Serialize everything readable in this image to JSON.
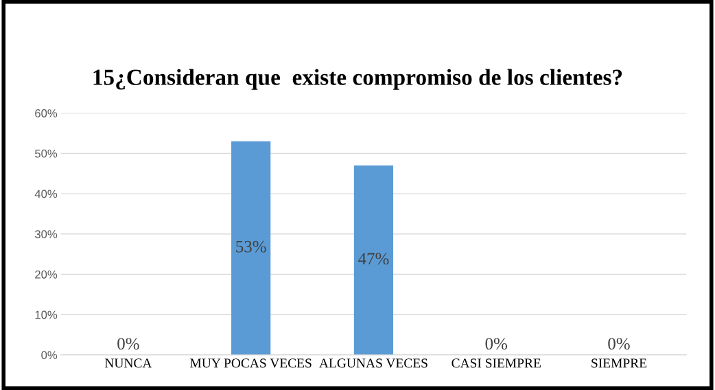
{
  "chart_data": {
    "type": "bar",
    "title": "15¿Consideran que  existe compromiso de los clientes?",
    "categories": [
      "NUNCA",
      "MUY POCAS VECES",
      "ALGUNAS VECES",
      "CASI SIEMPRE",
      "SIEMPRE"
    ],
    "values": [
      0,
      53,
      47,
      0,
      0
    ],
    "value_labels": [
      "0%",
      "53%",
      "47%",
      "0%",
      "0%"
    ],
    "color": "#5b9bd5",
    "ylim": [
      0,
      60
    ],
    "yticks": [
      {
        "value": 0,
        "label": "0%"
      },
      {
        "value": 10,
        "label": "10%"
      },
      {
        "value": 20,
        "label": "20%"
      },
      {
        "value": 30,
        "label": "30%"
      },
      {
        "value": 40,
        "label": "40%"
      },
      {
        "value": 50,
        "label": "50%"
      },
      {
        "value": 60,
        "label": "60%"
      }
    ],
    "grid": "y"
  }
}
